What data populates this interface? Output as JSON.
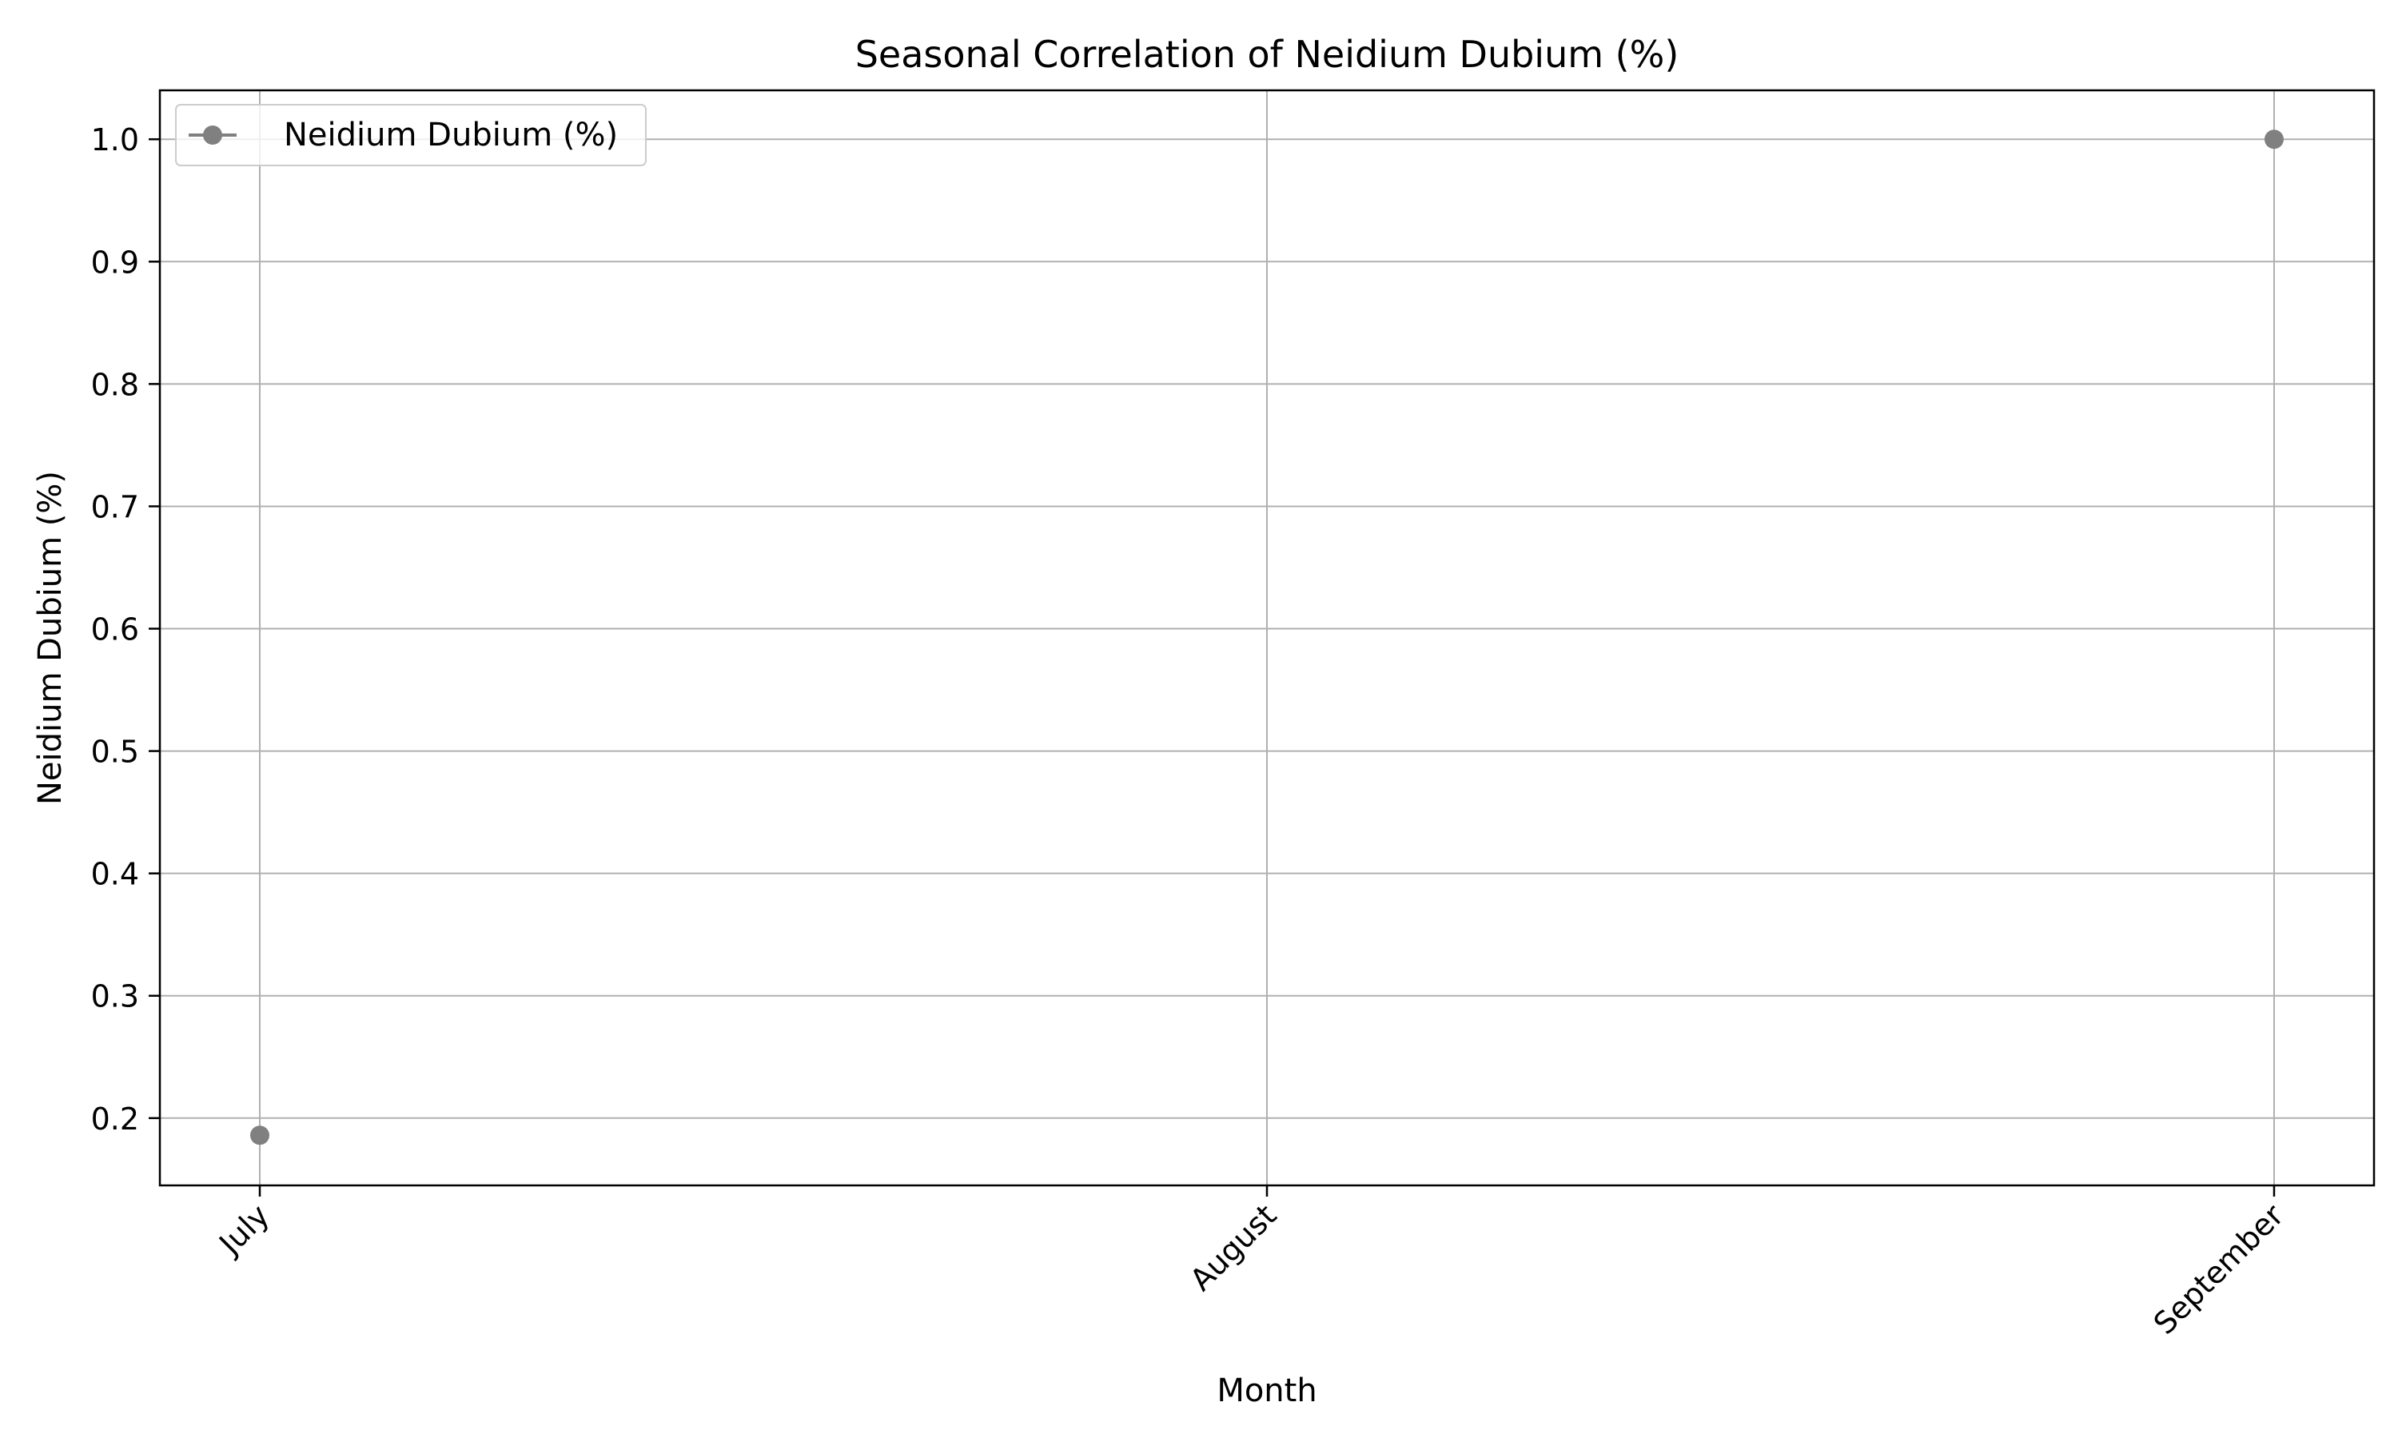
{
  "chart_data": {
    "type": "line",
    "title": "Seasonal Correlation of Neidium Dubium (%)",
    "xlabel": "Month",
    "ylabel": "Neidium Dubium (%)",
    "categories": [
      "July",
      "August",
      "September"
    ],
    "series": [
      {
        "name": "Neidium Dubium (%)",
        "color": "#808080",
        "values": [
          0.186,
          null,
          1.0
        ]
      }
    ],
    "ylim": [
      0.145,
      1.04
    ],
    "yticks": [
      0.2,
      0.3,
      0.4,
      0.5,
      0.6,
      0.7,
      0.8,
      0.9,
      1.0
    ],
    "ytick_labels": [
      "0.2",
      "0.3",
      "0.4",
      "0.5",
      "0.6",
      "0.7",
      "0.8",
      "0.9",
      "1.0"
    ],
    "grid": true,
    "legend_position": "top-left",
    "xtick_rotation_deg": 45
  }
}
